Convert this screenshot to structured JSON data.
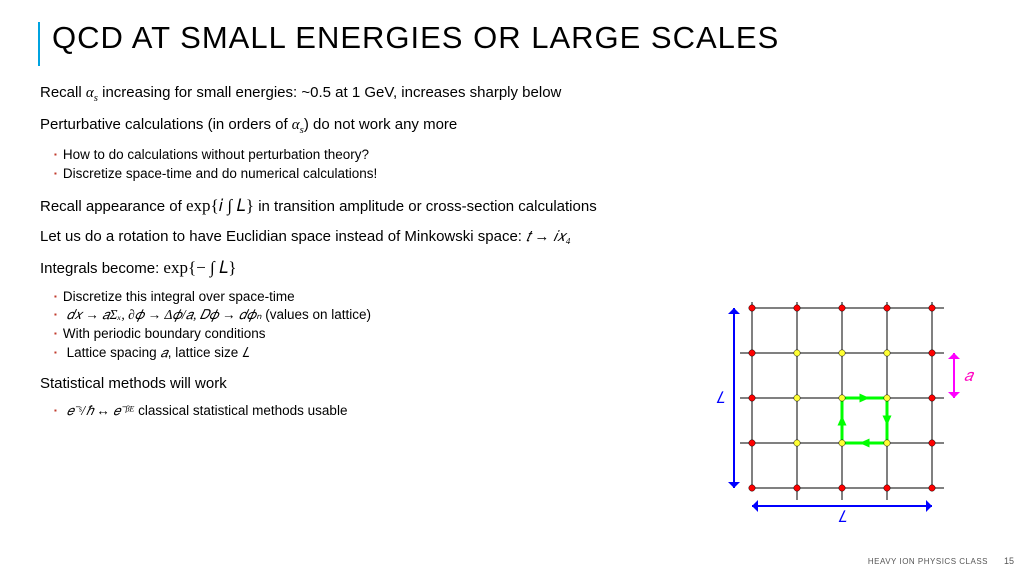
{
  "title": "QCD AT SMALL ENERGIES OR LARGE SCALES",
  "lines": {
    "l1a": "Recall ",
    "l1b": " increasing for small energies: ~0.5 at 1 GeV, increases sharply below",
    "l2a": "Perturbative calculations (in orders of ",
    "l2b": ") do not work any more",
    "l3": "How to do calculations without perturbation theory?",
    "l4": "Discretize space-time and do numerical calculations!",
    "l5a": "Recall appearance of ",
    "l5b": " in transition amplitude or cross-section calculations",
    "l6a": "Let us do a rotation to have Euclidian space instead of Minkowski space: ",
    "l7a": "Integrals become: ",
    "l8": "Discretize this integral over space-time",
    "l9b": " (values on lattice)",
    "l10": "With periodic boundary conditions",
    "l11a": "Lattice spacing ",
    "l11b": ", lattice size ",
    "l12": "Statistical methods will work",
    "l13b": " classical statistical methods usable"
  },
  "math": {
    "alpha_s": "α",
    "alpha_s_sub": "s",
    "exp_iL": "exp{𝑖 ∫ 𝐿}",
    "t_to_ix4": "𝑡 → 𝑖𝑥₄",
    "exp_neg": "exp{− ∫ 𝐿}",
    "disc": "𝑑𝑥 → 𝑎Σₓ, ∂𝜙 → Δ𝜙/𝑎, 𝐷𝜙 → 𝑑𝜙ₙ",
    "a": "𝑎",
    "L": "𝐿",
    "stat": "𝑒⁻ˢ/ℏ ↔ 𝑒⁻ᵝᴱ"
  },
  "diagram": {
    "grid_color": "#000000",
    "outer_color": "#0000ff",
    "edge_dot_color": "#ff0000",
    "interior_dot_color": "#ffff33",
    "plaquette_color": "#00ff00",
    "spacing_color": "#ff00ff",
    "label_L_color": "#0000ff",
    "label_a_color": "#ff00c0",
    "label_L": "𝐿",
    "label_a": "𝑎",
    "cells": 4,
    "dot_r": 3.2
  },
  "footer": "HEAVY ION PHYSICS CLASS",
  "page": "15"
}
